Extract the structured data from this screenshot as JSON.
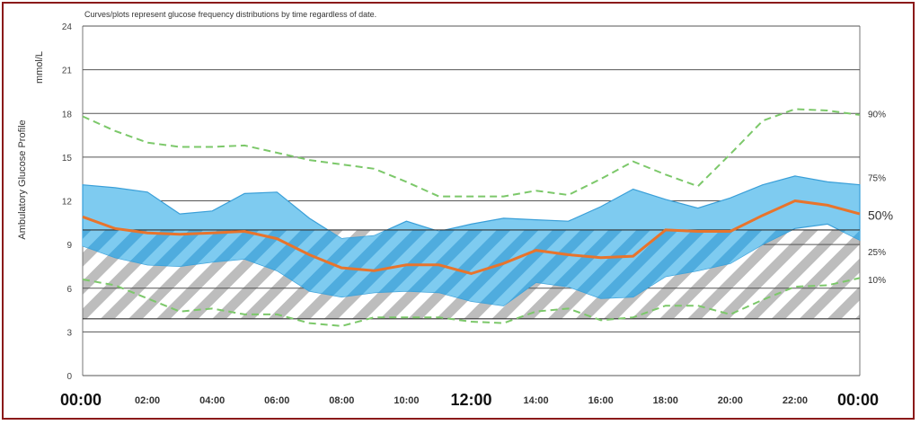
{
  "note": "Curves/plots represent glucose frequency distributions by time regardless of date.",
  "unit": "mmol/L",
  "ylabel": "Ambulatory Glucose Profile",
  "chart_data": {
    "type": "area",
    "ylim": [
      0,
      24
    ],
    "yticks": [
      "24",
      "21",
      "18",
      "15",
      "12",
      "9",
      "6",
      "3",
      "0"
    ],
    "ytick_values": [
      24,
      21,
      18,
      15,
      12,
      9,
      6,
      3,
      0
    ],
    "xlim": [
      0,
      24
    ],
    "xtick_labels": [
      "00:00",
      "02:00",
      "04:00",
      "06:00",
      "08:00",
      "10:00",
      "12:00",
      "14:00",
      "16:00",
      "18:00",
      "20:00",
      "22:00",
      "00:00"
    ],
    "xtick_hours": [
      0,
      2,
      4,
      6,
      8,
      10,
      12,
      14,
      16,
      18,
      20,
      22,
      24
    ],
    "xtick_emphasis": [
      true,
      false,
      false,
      false,
      false,
      false,
      true,
      false,
      false,
      false,
      false,
      false,
      true
    ],
    "target_range": [
      3.9,
      10.0
    ],
    "x": [
      0,
      1,
      2,
      3,
      4,
      5,
      6,
      7,
      8,
      9,
      10,
      11,
      12,
      13,
      14,
      15,
      16,
      17,
      18,
      19,
      20,
      21,
      22,
      23,
      24
    ],
    "series": [
      {
        "name": "90%",
        "values": [
          17.8,
          16.8,
          16.0,
          15.7,
          15.7,
          15.8,
          15.3,
          14.8,
          14.5,
          14.2,
          13.3,
          12.3,
          12.3,
          12.3,
          12.7,
          12.4,
          13.5,
          14.7,
          13.8,
          13.0,
          15.2,
          17.5,
          18.3,
          18.2,
          17.9
        ]
      },
      {
        "name": "75%",
        "values": [
          13.1,
          12.9,
          12.6,
          11.1,
          11.3,
          12.5,
          12.6,
          10.8,
          9.4,
          9.6,
          10.6,
          9.9,
          10.4,
          10.8,
          10.7,
          10.6,
          11.6,
          12.8,
          12.1,
          11.5,
          12.2,
          13.1,
          13.7,
          13.3,
          13.1
        ]
      },
      {
        "name": "50%",
        "values": [
          10.9,
          10.1,
          9.8,
          9.7,
          9.8,
          9.9,
          9.4,
          8.3,
          7.4,
          7.2,
          7.6,
          7.6,
          7.0,
          7.7,
          8.6,
          8.3,
          8.1,
          8.2,
          10.0,
          9.9,
          9.9,
          11.0,
          12.0,
          11.7,
          11.1
        ]
      },
      {
        "name": "25%",
        "values": [
          8.9,
          8.1,
          7.6,
          7.5,
          7.8,
          8.0,
          7.2,
          5.8,
          5.4,
          5.7,
          5.8,
          5.7,
          5.1,
          4.8,
          6.4,
          6.1,
          5.3,
          5.4,
          6.8,
          7.2,
          7.7,
          9.0,
          10.1,
          10.4,
          9.3
        ]
      },
      {
        "name": "10%",
        "values": [
          6.6,
          6.2,
          5.3,
          4.4,
          4.6,
          4.2,
          4.2,
          3.6,
          3.4,
          4.0,
          4.0,
          4.0,
          3.7,
          3.6,
          4.4,
          4.6,
          3.8,
          4.0,
          4.8,
          4.8,
          4.2,
          5.2,
          6.1,
          6.2,
          6.7
        ]
      }
    ],
    "percentile_labels": [
      "90%",
      "75%",
      "50%",
      "25%",
      "10%"
    ],
    "colors": {
      "iqr_band": "#7ecbf0",
      "iqr_edge": "#3a9fd8",
      "median": "#e8742c",
      "outer": "#7cc86a",
      "target_hatch": "#bdbdbd",
      "grid": "#555555"
    }
  }
}
